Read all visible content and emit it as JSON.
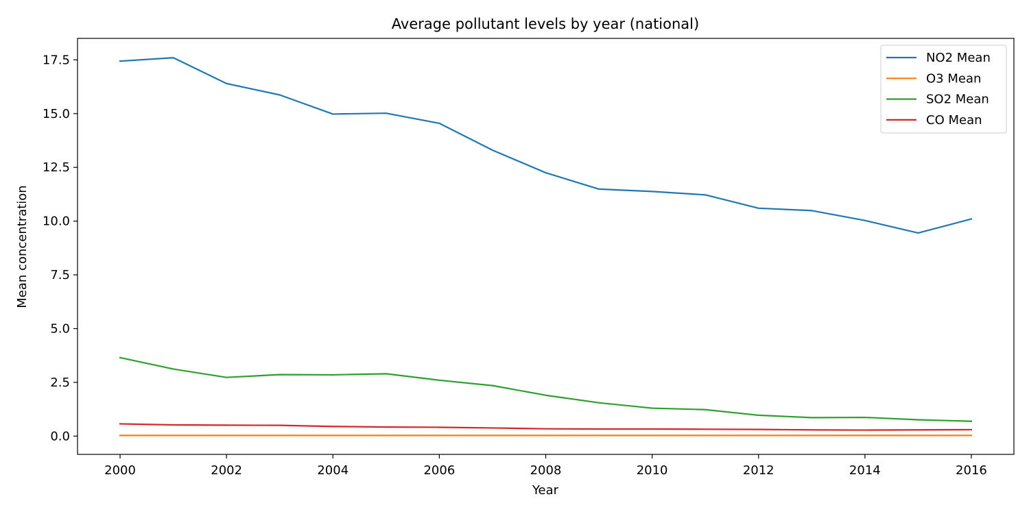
{
  "chart_data": {
    "type": "line",
    "title": "Average pollutant levels by year (national)",
    "xlabel": "Year",
    "ylabel": "Mean concentration",
    "x": [
      2000,
      2001,
      2002,
      2003,
      2004,
      2005,
      2006,
      2007,
      2008,
      2009,
      2010,
      2011,
      2012,
      2013,
      2014,
      2015,
      2016
    ],
    "xlim": [
      1999.2,
      2016.8
    ],
    "ylim": [
      -0.85,
      18.5
    ],
    "x_ticks": [
      2000,
      2002,
      2004,
      2006,
      2008,
      2010,
      2012,
      2014,
      2016
    ],
    "y_ticks": [
      0.0,
      2.5,
      5.0,
      7.5,
      10.0,
      12.5,
      15.0,
      17.5
    ],
    "y_tick_labels": [
      "0.0",
      "2.5",
      "5.0",
      "7.5",
      "10.0",
      "12.5",
      "15.0",
      "17.5"
    ],
    "grid": false,
    "legend_position": "top-right",
    "series": [
      {
        "name": "NO2 Mean",
        "color": "#1f77b4",
        "values": [
          17.44,
          17.6,
          16.4,
          15.87,
          14.98,
          15.02,
          14.55,
          13.3,
          12.25,
          11.49,
          11.38,
          11.22,
          10.6,
          10.49,
          10.03,
          9.45,
          10.1
        ]
      },
      {
        "name": "O3 Mean",
        "color": "#ff7f0e",
        "values": [
          0.03,
          0.03,
          0.03,
          0.03,
          0.03,
          0.03,
          0.03,
          0.03,
          0.03,
          0.03,
          0.03,
          0.03,
          0.03,
          0.03,
          0.03,
          0.03,
          0.03
        ]
      },
      {
        "name": "SO2 Mean",
        "color": "#2ca02c",
        "values": [
          3.65,
          3.12,
          2.73,
          2.86,
          2.85,
          2.9,
          2.6,
          2.35,
          1.9,
          1.55,
          1.3,
          1.23,
          0.97,
          0.86,
          0.87,
          0.76,
          0.69
        ]
      },
      {
        "name": "CO Mean",
        "color": "#d62728",
        "values": [
          0.57,
          0.52,
          0.51,
          0.5,
          0.45,
          0.42,
          0.41,
          0.38,
          0.34,
          0.33,
          0.33,
          0.32,
          0.31,
          0.29,
          0.28,
          0.29,
          0.3
        ]
      }
    ]
  }
}
